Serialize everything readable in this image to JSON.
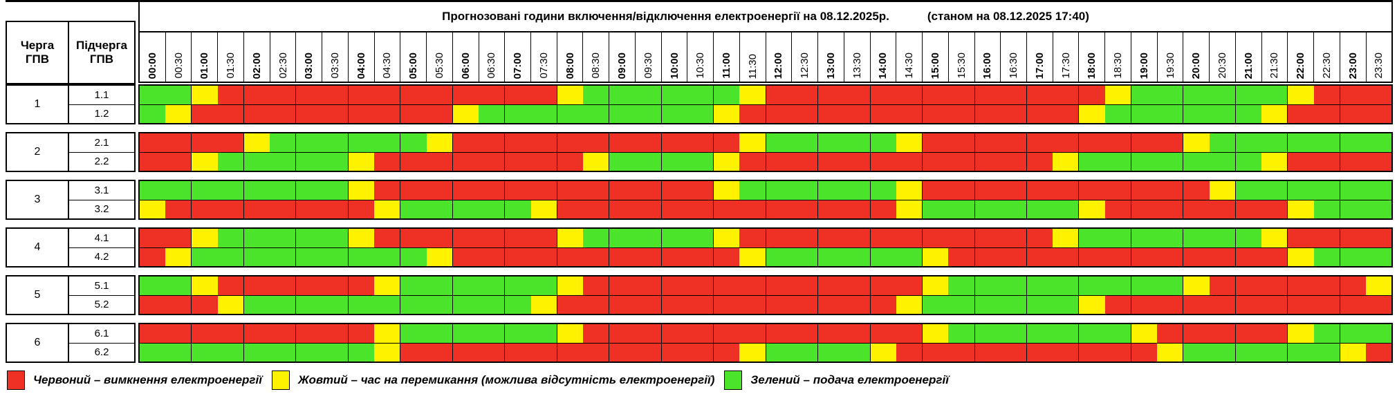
{
  "header": {
    "title": "Прогнозовані години включення/відключення електроенергії на 08.12.2025р.",
    "status_time": "(станом на 08.12.2025 17:40)",
    "queue_col": "Черга\nГПВ",
    "subqueue_col": "Підчерга\nГПВ"
  },
  "time_slots": [
    "00:00",
    "00:30",
    "01:00",
    "01:30",
    "02:00",
    "02:30",
    "03:00",
    "03:30",
    "04:00",
    "04:30",
    "05:00",
    "05:30",
    "06:00",
    "06:30",
    "07:00",
    "07:30",
    "08:00",
    "08:30",
    "09:00",
    "09:30",
    "10:00",
    "10:30",
    "11:00",
    "11:30",
    "12:00",
    "12:30",
    "13:00",
    "13:30",
    "14:00",
    "14:30",
    "15:00",
    "15:30",
    "16:00",
    "16:30",
    "17:00",
    "17:30",
    "18:00",
    "18:30",
    "19:00",
    "19:30",
    "20:00",
    "20:30",
    "21:00",
    "21:30",
    "22:00",
    "22:30",
    "23:00",
    "23:30"
  ],
  "colors": {
    "R": "#ee3124",
    "Y": "#fff200",
    "G": "#4ce32b"
  },
  "legend": [
    {
      "key": "R",
      "label": "Червоний – вимкнення електроенергії"
    },
    {
      "key": "Y",
      "label": "Жовтий – час на перемикання (можлива відсутність електроенергії)"
    },
    {
      "key": "G",
      "label": "Зелений – подача електроенергії"
    }
  ],
  "chart_data": {
    "type": "heatmap",
    "title": "Прогнозовані години включення/відключення електроенергії на 08.12.2025р.",
    "status_time": "(станом на 08.12.2025 17:40)",
    "x_categories": [
      "00:00",
      "00:30",
      "01:00",
      "01:30",
      "02:00",
      "02:30",
      "03:00",
      "03:30",
      "04:00",
      "04:30",
      "05:00",
      "05:30",
      "06:00",
      "06:30",
      "07:00",
      "07:30",
      "08:00",
      "08:30",
      "09:00",
      "09:30",
      "10:00",
      "10:30",
      "11:00",
      "11:30",
      "12:00",
      "12:30",
      "13:00",
      "13:30",
      "14:00",
      "14:30",
      "15:00",
      "15:30",
      "16:00",
      "16:30",
      "17:00",
      "17:30",
      "18:00",
      "18:30",
      "19:00",
      "19:30",
      "20:00",
      "20:30",
      "21:00",
      "21:30",
      "22:00",
      "22:30",
      "23:00",
      "23:30"
    ],
    "state_meaning": {
      "R": "вимкнення електроенергії",
      "Y": "час на перемикання (можлива відсутність електроенергії)",
      "G": "подача електроенергії"
    },
    "rows": [
      {
        "queue": "1",
        "subqueue": "1.1",
        "statuses": "GGYRRRRRRRRRRRRRYGGGGGGYRRRRRRRRRRRRRYGGGGGGYRRR"
      },
      {
        "queue": "1",
        "subqueue": "1.2",
        "statuses": "GYRRRRRRRRRRYGGGGGGGGGYRRRRRRRRRRRRRYGGGGGGYRRRR"
      },
      {
        "queue": "2",
        "subqueue": "2.1",
        "statuses": "RRRRYGGGGGGYRRRRRRRRRRRYGGGGGYRRRRRRRRRRYGGGGGGG"
      },
      {
        "queue": "2",
        "subqueue": "2.2",
        "statuses": "RRYGGGGGYRRRRRRRRYGGGGYRRRRRRRRRRRRYGGGGGGGYRRRR"
      },
      {
        "queue": "3",
        "subqueue": "3.1",
        "statuses": "GGGGGGGGYRRRRRRRRRRRRRYGGGGGGYRRRRRRRRRRRYGGGGGG"
      },
      {
        "queue": "3",
        "subqueue": "3.2",
        "statuses": "YRRRRRRRRYGGGGGYRRRRRRRRRRRRRYGGGGGGYRRRRRRRYGGG"
      },
      {
        "queue": "4",
        "subqueue": "4.1",
        "statuses": "RRYGGGGGYRRRRRRRYGGGGGYRRRRRRRRRRRRYGGGGGGGYRRRR"
      },
      {
        "queue": "4",
        "subqueue": "4.2",
        "statuses": "RYGGGGGGGGGYRRRRRRRRRRRYGGGGGGYRRRRRRRRRRRRRYGGG"
      },
      {
        "queue": "5",
        "subqueue": "5.1",
        "statuses": "GGYRRRRRRYGGGGGGYRRRRRRRRRRRRRYGGGGGGGGGYRRRRRRY"
      },
      {
        "queue": "5",
        "subqueue": "5.2",
        "statuses": "RRRYGGGGGGGGGGGYRRRRRRRRRRRRRYGGGGGGYRRRRRRRRRRR"
      },
      {
        "queue": "6",
        "subqueue": "6.1",
        "statuses": "RRRRRRRRRYGGGGGGYRRRRRRRRRRRRRYGGGGGGGYRRRRRYGGG"
      },
      {
        "queue": "6",
        "subqueue": "6.2",
        "statuses": "GGGGGGGGGYRRRRRRRRRRRRRYGGGGYRRRRRRRRRRYGGGGGGYR"
      }
    ]
  }
}
